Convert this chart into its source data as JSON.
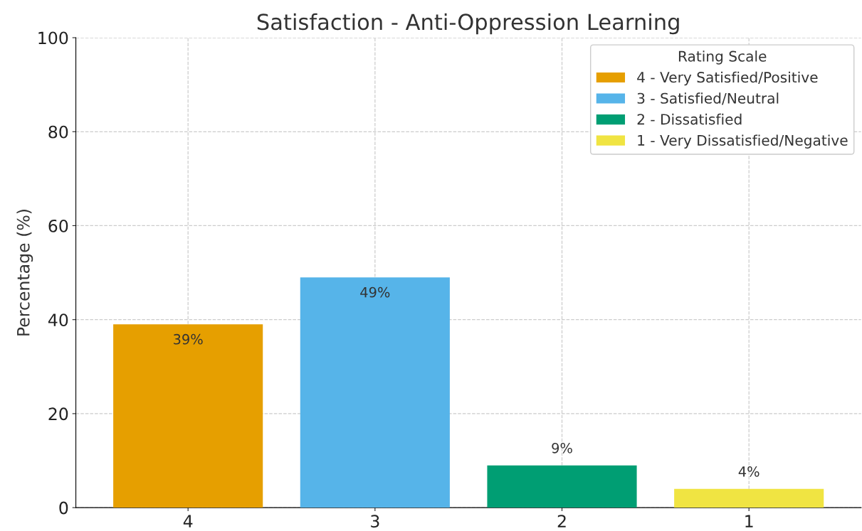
{
  "chart_data": {
    "type": "bar",
    "title": "Satisfaction - Anti-Oppression Learning",
    "ylabel": "Percentage (%)",
    "categories": [
      "4",
      "3",
      "2",
      "1"
    ],
    "series": [
      {
        "name": "4 - Very Satisfied/Positive",
        "color": "#e69f00",
        "values": [
          39,
          null,
          null,
          null
        ],
        "value_labels": [
          "39%",
          null,
          null,
          null
        ]
      },
      {
        "name": "3 - Satisfied/Neutral",
        "color": "#56b4e9",
        "values": [
          null,
          49,
          null,
          null
        ],
        "value_labels": [
          null,
          "49%",
          null,
          null
        ]
      },
      {
        "name": "2 - Dissatisfied",
        "color": "#009e73",
        "values": [
          null,
          null,
          9,
          null
        ],
        "value_labels": [
          null,
          null,
          "9%",
          null
        ]
      },
      {
        "name": "1 - Very Dissatisfied/Negative",
        "color": "#f0e442",
        "values": [
          null,
          null,
          null,
          4
        ],
        "value_labels": [
          null,
          null,
          null,
          "4%"
        ]
      }
    ],
    "legend_title": "Rating Scale",
    "legend": "top right",
    "ylim": [
      0,
      100
    ],
    "yticks": [
      0,
      20,
      40,
      60,
      80,
      100
    ],
    "grid": true
  }
}
